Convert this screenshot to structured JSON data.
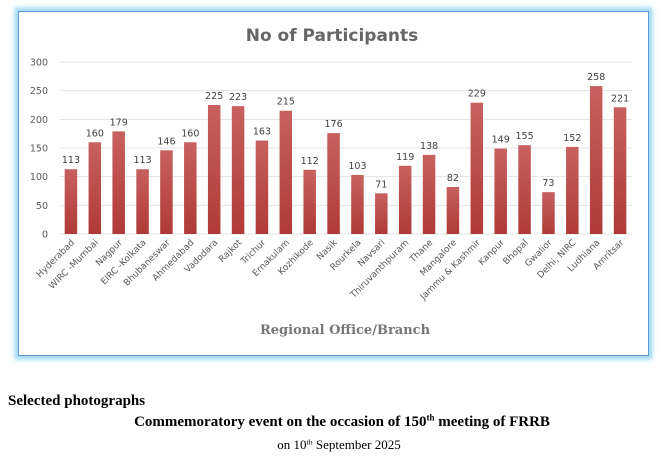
{
  "chart_data": {
    "type": "bar",
    "title": "No of Participants",
    "xlabel": "Regional Office/Branch",
    "ylabel": "",
    "ylim": [
      0,
      300
    ],
    "yticks": [
      0,
      50,
      100,
      150,
      200,
      250,
      300
    ],
    "grid": true,
    "legend": "none",
    "bar_color": "#c0504d",
    "bar_color_top": "#c7615f",
    "bar_color_bottom": "#b03a37",
    "categories": [
      "Hyderabad",
      "WIRC -Mumbai",
      "Nagpur",
      "EIRC -Kolkata",
      "Bhubaneswar",
      "Ahmedabad",
      "Vadodara",
      "Rajkot",
      "Trichur",
      "Ernakulam",
      "Kozhikode",
      "Nasik",
      "Rourkela",
      "Navsari",
      "Thiruvanthpuram",
      "Thane",
      "Mangalore",
      "Jammu & Kashmir",
      "Kanpur",
      "Bhopal",
      "Gwalior",
      "Delhi, NIRC",
      "Ludhiana",
      "Amritsar"
    ],
    "values": [
      113,
      160,
      179,
      113,
      146,
      160,
      225,
      223,
      163,
      215,
      112,
      176,
      103,
      71,
      119,
      138,
      82,
      229,
      149,
      155,
      73,
      152,
      258,
      221
    ]
  },
  "captions": {
    "heading": "Selected photographs",
    "event_prefix": "Commemoratory event on the occasion of 150",
    "event_sup": "th",
    "event_suffix": " meeting of FRRB",
    "date_prefix": "on 10",
    "date_sup": "th",
    "date_suffix": " September 2025"
  }
}
